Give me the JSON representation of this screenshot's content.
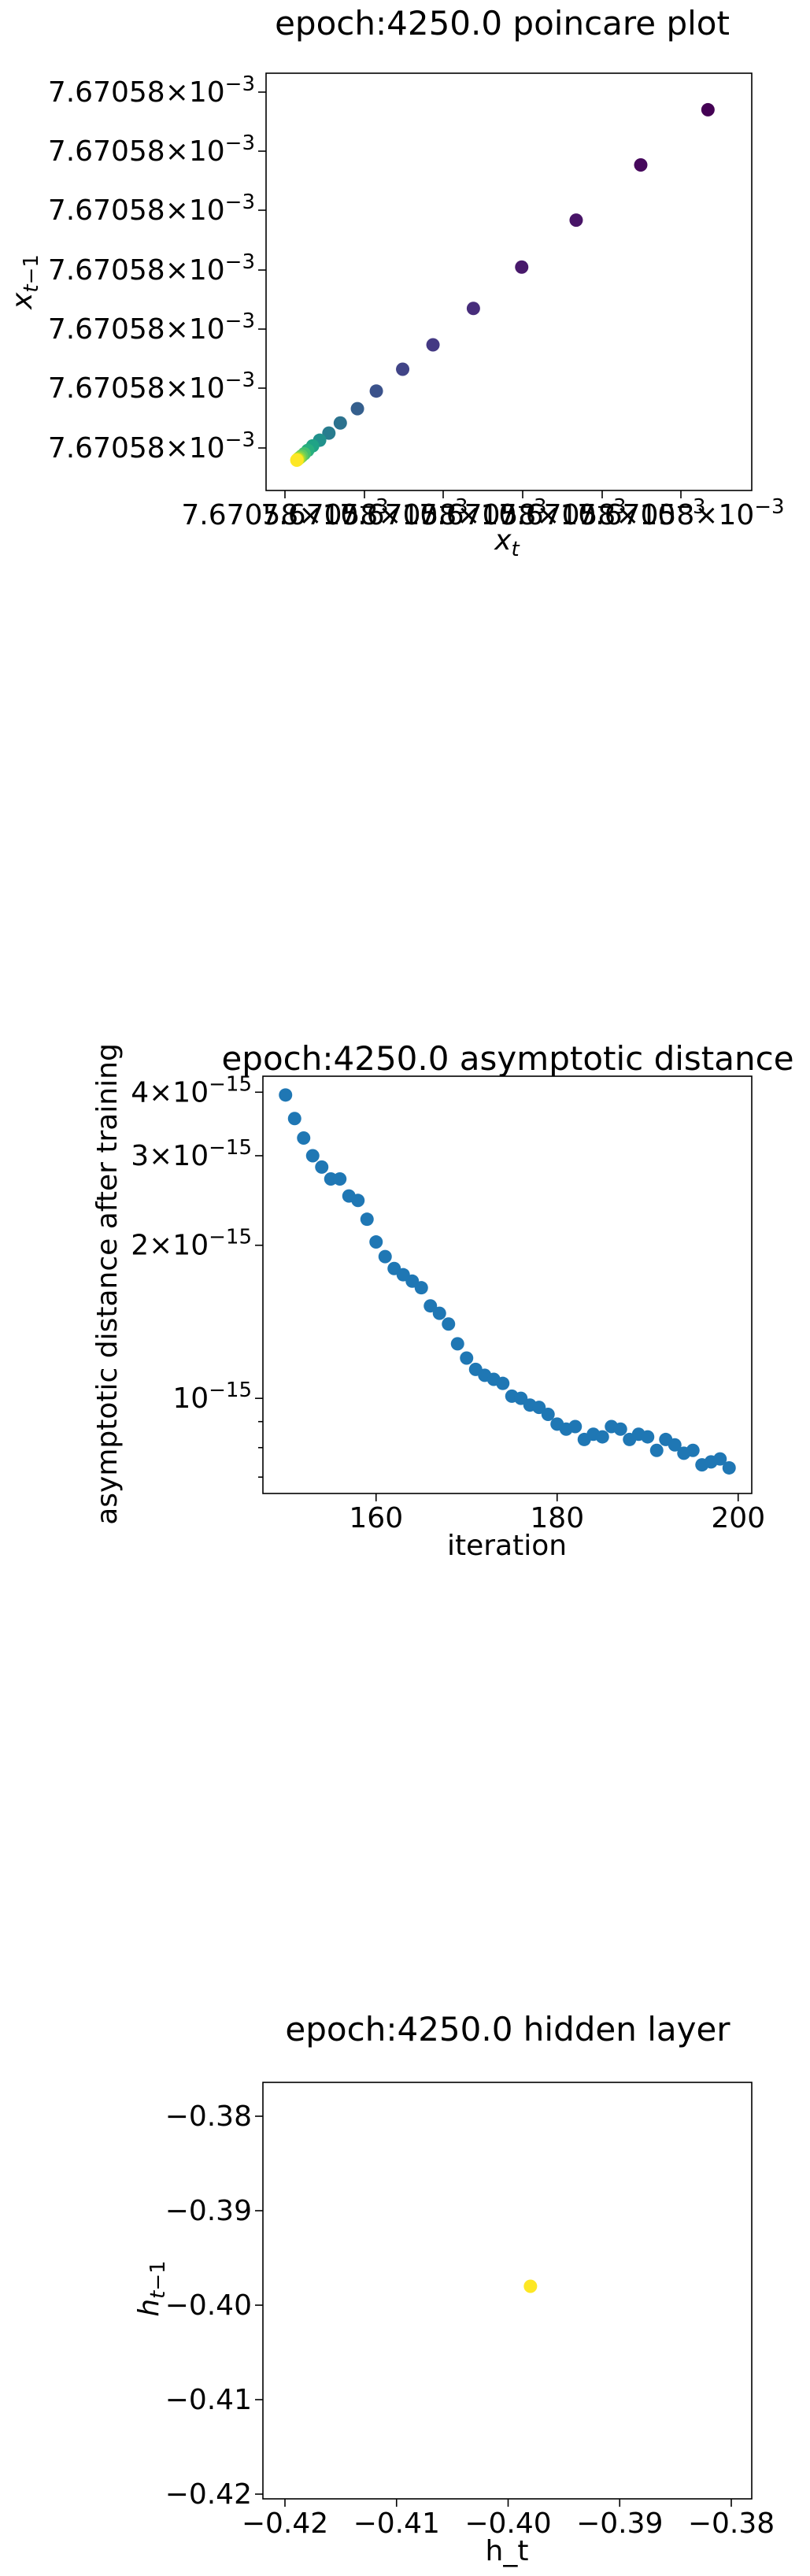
{
  "chart_data": [
    {
      "type": "scatter",
      "title": "epoch:4250.0 poincare plot",
      "xlabel": "x_t",
      "ylabel": "x_{t-1}",
      "xtick_label_text": "7.67058×10⁻³",
      "ytick_labels": [
        "7.67058×10⁻³",
        "7.67058×10⁻³",
        "7.67058×10⁻³",
        "7.67058×10⁻³",
        "7.67058×10⁻³",
        "7.67058×10⁻³",
        "7.67058×10⁻³"
      ],
      "xlim": [
        0,
        1
      ],
      "ylim": [
        0,
        1
      ],
      "x_note": "x and y values are relative positions between the min and max state value (~0.00767058); absolute differences are below the printed precision",
      "colormap": "viridis, dark purple (early) to yellow (late)",
      "points": [
        {
          "x": 0.963,
          "y": 0.953,
          "color": "#440154"
        },
        {
          "x": 0.81,
          "y": 0.806,
          "color": "#46085c"
        },
        {
          "x": 0.663,
          "y": 0.659,
          "color": "#481467"
        },
        {
          "x": 0.539,
          "y": 0.534,
          "color": "#48196b"
        },
        {
          "x": 0.429,
          "y": 0.424,
          "color": "#472d7b"
        },
        {
          "x": 0.337,
          "y": 0.327,
          "color": "#443983"
        },
        {
          "x": 0.268,
          "y": 0.262,
          "color": "#414487"
        },
        {
          "x": 0.208,
          "y": 0.204,
          "color": "#3b528b"
        },
        {
          "x": 0.165,
          "y": 0.157,
          "color": "#355f8d"
        },
        {
          "x": 0.126,
          "y": 0.119,
          "color": "#2c728e"
        },
        {
          "x": 0.1,
          "y": 0.092,
          "color": "#287c8e"
        },
        {
          "x": 0.079,
          "y": 0.073,
          "color": "#21918c"
        },
        {
          "x": 0.063,
          "y": 0.058,
          "color": "#20a386"
        },
        {
          "x": 0.052,
          "y": 0.046,
          "color": "#29af7f"
        },
        {
          "x": 0.044,
          "y": 0.037,
          "color": "#44bf70"
        },
        {
          "x": 0.038,
          "y": 0.031,
          "color": "#5ec962"
        },
        {
          "x": 0.034,
          "y": 0.027,
          "color": "#7ad151"
        },
        {
          "x": 0.031,
          "y": 0.024,
          "color": "#9bd93c"
        },
        {
          "x": 0.029,
          "y": 0.022,
          "color": "#bddf26"
        },
        {
          "x": 0.028,
          "y": 0.021,
          "color": "#dfe318"
        },
        {
          "x": 0.027,
          "y": 0.02,
          "color": "#fde725"
        }
      ]
    },
    {
      "type": "scatter",
      "title": "epoch:4250.0 asymptotic distance",
      "xlabel": "iteration",
      "ylabel": "asymptotic distance after training",
      "yscale": "log",
      "xlim": [
        147.5,
        201.5
      ],
      "ylim": [
        6.5e-16,
        4.3e-15
      ],
      "xticks": [
        160,
        180,
        200
      ],
      "yticks": [
        {
          "value": 4e-15,
          "label": "4×10⁻¹⁵"
        },
        {
          "value": 3e-15,
          "label": "3×10⁻¹⁵"
        },
        {
          "value": 2e-15,
          "label": "2×10⁻¹⁵"
        },
        {
          "value": 1e-15,
          "label": "10⁻¹⁵"
        }
      ],
      "yminor_ticks": [
        9e-16,
        8e-16,
        7e-16
      ],
      "marker_color": "#1f77b4",
      "x": [
        150,
        151,
        152,
        153,
        154,
        155,
        156,
        157,
        158,
        159,
        160,
        161,
        162,
        163,
        164,
        165,
        166,
        167,
        168,
        169,
        170,
        171,
        172,
        173,
        174,
        175,
        176,
        177,
        178,
        179,
        180,
        181,
        182,
        183,
        184,
        185,
        186,
        187,
        188,
        189,
        190,
        191,
        192,
        193,
        194,
        195,
        196,
        197,
        198,
        199
      ],
      "y": [
        3.95e-15,
        3.55e-15,
        3.25e-15,
        3e-15,
        2.85e-15,
        2.7e-15,
        2.7e-15,
        2.5e-15,
        2.45e-15,
        2.25e-15,
        2.03e-15,
        1.9e-15,
        1.8e-15,
        1.75e-15,
        1.7e-15,
        1.65e-15,
        1.52e-15,
        1.47e-15,
        1.4e-15,
        1.28e-15,
        1.2e-15,
        1.14e-15,
        1.11e-15,
        1.09e-15,
        1.07e-15,
        1.01e-15,
        1e-15,
        9.7e-16,
        9.6e-16,
        9.3e-16,
        8.9e-16,
        8.7e-16,
        8.8e-16,
        8.3e-16,
        8.5e-16,
        8.4e-16,
        8.8e-16,
        8.7e-16,
        8.3e-16,
        8.5e-16,
        8.4e-16,
        7.9e-16,
        8.3e-16,
        8.1e-16,
        7.8e-16,
        7.9e-16,
        7.4e-16,
        7.5e-16,
        7.6e-16,
        7.3e-16
      ]
    },
    {
      "type": "scatter",
      "title": "epoch:4250.0 hidden layer",
      "xlabel": "h_t",
      "ylabel": "h_{t-1}",
      "xlim": [
        -0.42,
        -0.376
      ],
      "ylim": [
        -0.42,
        -0.376
      ],
      "xticks": [
        -0.42,
        -0.41,
        -0.4,
        -0.39,
        -0.38
      ],
      "yticks": [
        -0.42,
        -0.41,
        -0.4,
        -0.39,
        -0.38
      ],
      "tick_labels": [
        "−0.42",
        "−0.41",
        "−0.40",
        "−0.39",
        "−0.38"
      ],
      "marker_color": "#fde725",
      "points": [
        {
          "x": -0.398,
          "y": -0.398
        }
      ]
    }
  ]
}
